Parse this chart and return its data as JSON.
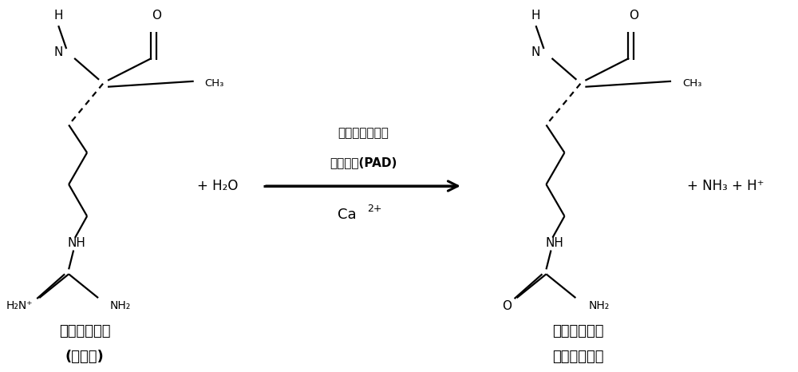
{
  "bg_color": "#ffffff",
  "figsize": [
    10.0,
    4.66
  ],
  "dpi": 100,
  "arrow_label_line1": "肽酥基精氨酸脱",
  "arrow_label_line2": "亚胺基醂(PAD)",
  "arrow_label_line3": "Ca",
  "arrow_label_line3b": "2+",
  "reactant_label_line1": "肽酥基精氨酸",
  "reactant_label_line2": "(正电荷)",
  "product_label_line1": "肽酥基瓜氨酸",
  "product_label_line2": "（中性电荷）",
  "lw": 1.6
}
